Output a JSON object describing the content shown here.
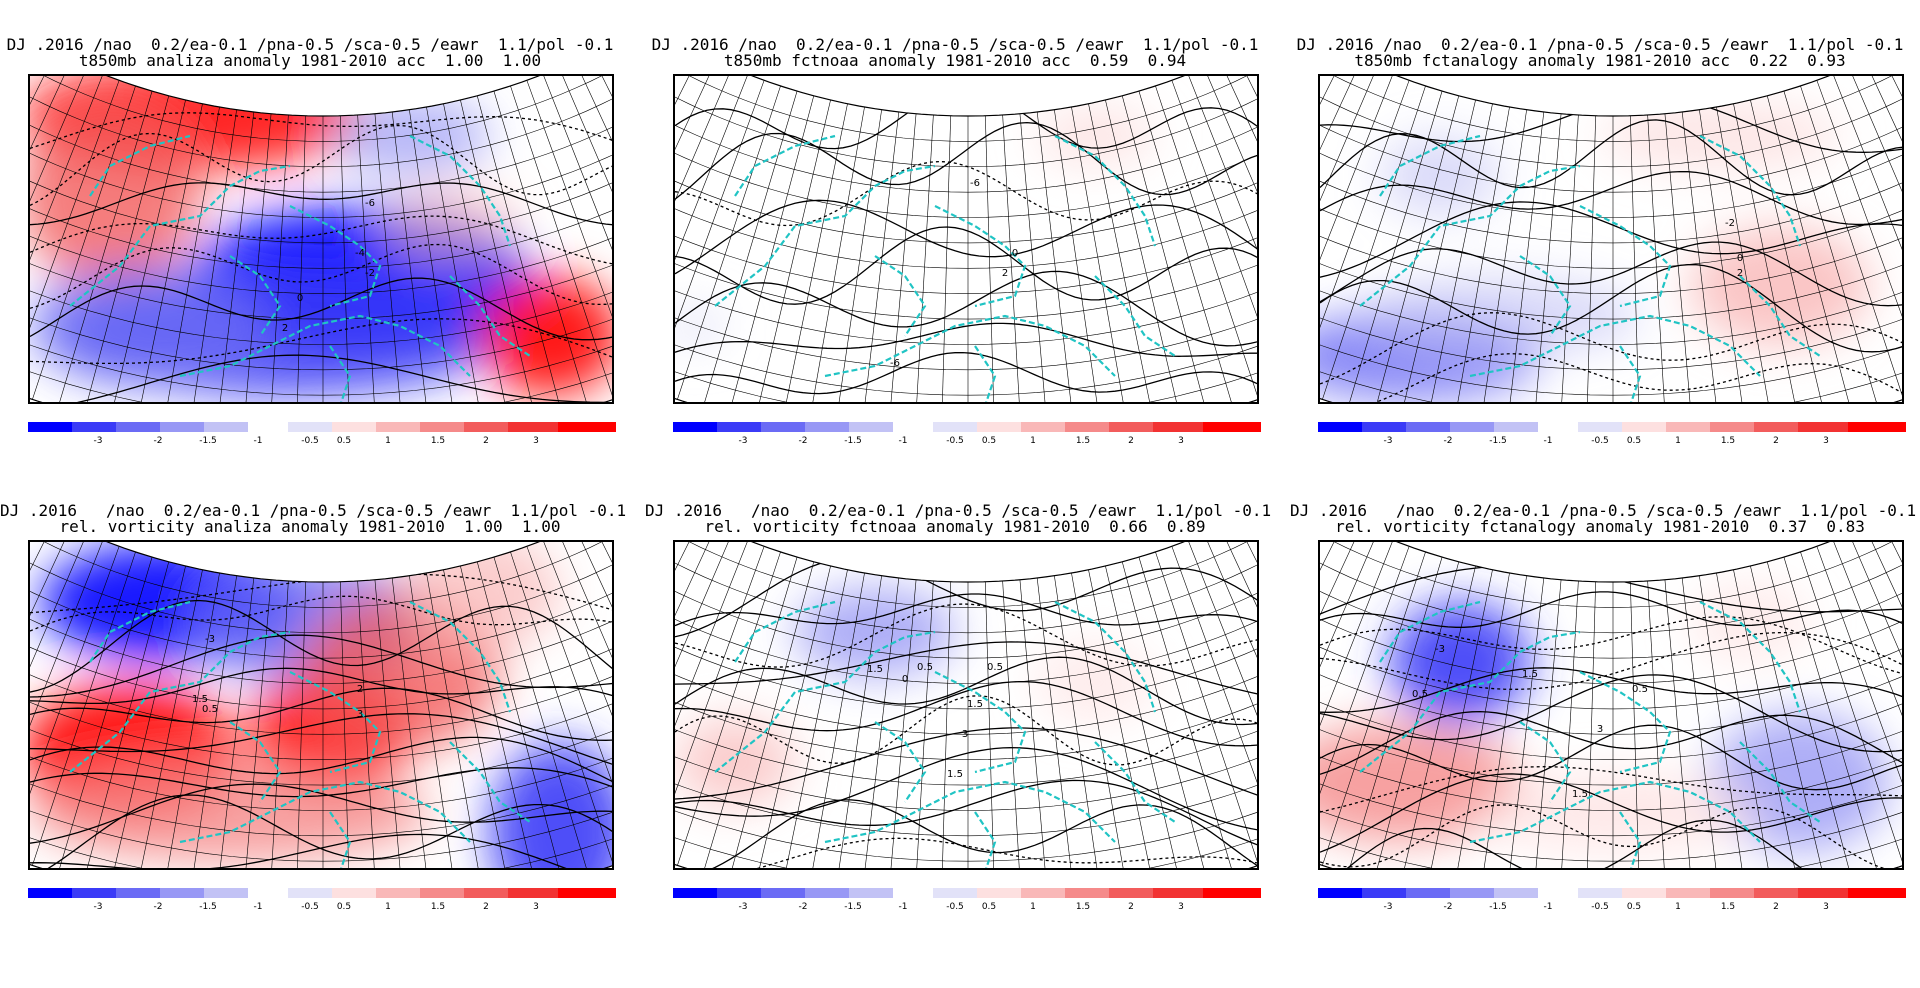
{
  "panels": [
    {
      "id": "p1",
      "title1": "DJ .2016 /nao  0.2/ea-0.1 /pna-0.5 /sca-0.5 /eawr  1.1/pol -0.1",
      "title2": "t850mb analiza anomaly 1981-2010 acc  1.00  1.00"
    },
    {
      "id": "p2",
      "title1": "DJ .2016 /nao  0.2/ea-0.1 /pna-0.5 /sca-0.5 /eawr  1.1/pol -0.1",
      "title2": "t850mb fctnoaa anomaly 1981-2010 acc  0.59  0.94"
    },
    {
      "id": "p3",
      "title1": "DJ .2016 /nao  0.2/ea-0.1 /pna-0.5 /sca-0.5 /eawr  1.1/pol -0.1",
      "title2": "t850mb fctanalogy anomaly 1981-2010 acc  0.22  0.93"
    },
    {
      "id": "p4",
      "title1": "DJ .2016   /nao  0.2/ea-0.1 /pna-0.5 /sca-0.5 /eawr  1.1/pol -0.1",
      "title2": "rel. vorticity analiza anomaly 1981-2010  1.00  1.00"
    },
    {
      "id": "p5",
      "title1": "DJ .2016   /nao  0.2/ea-0.1 /pna-0.5 /sca-0.5 /eawr  1.1/pol -0.1",
      "title2": "rel. vorticity fctnoaa anomaly 1981-2010  0.66  0.89"
    },
    {
      "id": "p6",
      "title1": "DJ .2016   /nao  0.2/ea-0.1 /pna-0.5 /sca-0.5 /eawr  1.1/pol -0.1",
      "title2": "rel. vorticity fctanalogy anomaly 1981-2010  0.37  0.83"
    }
  ],
  "colorbar": {
    "colors": [
      "#0000ff",
      "#3b3bf7",
      "#6b6bf5",
      "#9898f5",
      "#c2c2f5",
      "#e2e2f8",
      "#ffffff",
      "#fde0e0",
      "#f9b8b8",
      "#f58a8a",
      "#f25c5c",
      "#f23232",
      "#ff0000"
    ],
    "labels": [
      "-3",
      "-2",
      "-1.5",
      "-1",
      "-0.5",
      "0.5",
      "1",
      "1.5",
      "2",
      "3"
    ]
  },
  "contour_labels": {
    "p1": [
      "-6",
      "-4",
      "-2",
      "0",
      "2"
    ],
    "p2": [
      "-6",
      "0",
      "2",
      "-6"
    ],
    "p3": [
      "-2",
      "0",
      "2"
    ],
    "p4": [
      "-3",
      "1.5",
      "0.5",
      "2",
      "3"
    ],
    "p5": [
      "0.5",
      "1.5",
      "0",
      "0.5",
      "1.5",
      "3",
      "1.5"
    ],
    "p6": [
      "-3",
      "0.5",
      "1.5",
      "0.5",
      "3",
      "1.5"
    ]
  },
  "colors": {
    "coastline": "#20c4c4",
    "grid": "#000000",
    "contour": "#000000"
  }
}
